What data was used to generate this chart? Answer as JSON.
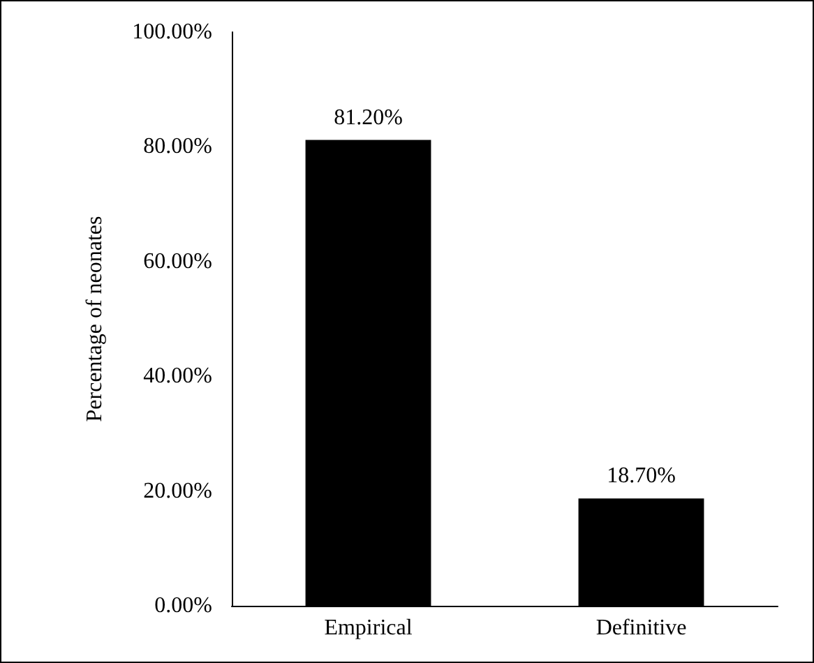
{
  "chart_data": {
    "type": "bar",
    "ylabel": "Percentage of neonates",
    "categories": [
      "Empirical",
      "Definitive"
    ],
    "values": [
      81.2,
      18.7
    ],
    "color": "#000000",
    "value_labels": [
      "81.20%",
      "18.70%"
    ],
    "ylim": [
      0,
      100
    ],
    "yticks": [
      {
        "value": 0,
        "label": "0.00%"
      },
      {
        "value": 20,
        "label": "20.00%"
      },
      {
        "value": 40,
        "label": "40.00%"
      },
      {
        "value": 60,
        "label": "60.00%"
      },
      {
        "value": 80,
        "label": "80.00%"
      },
      {
        "value": 100,
        "label": "100.00%"
      }
    ],
    "grid": false
  }
}
